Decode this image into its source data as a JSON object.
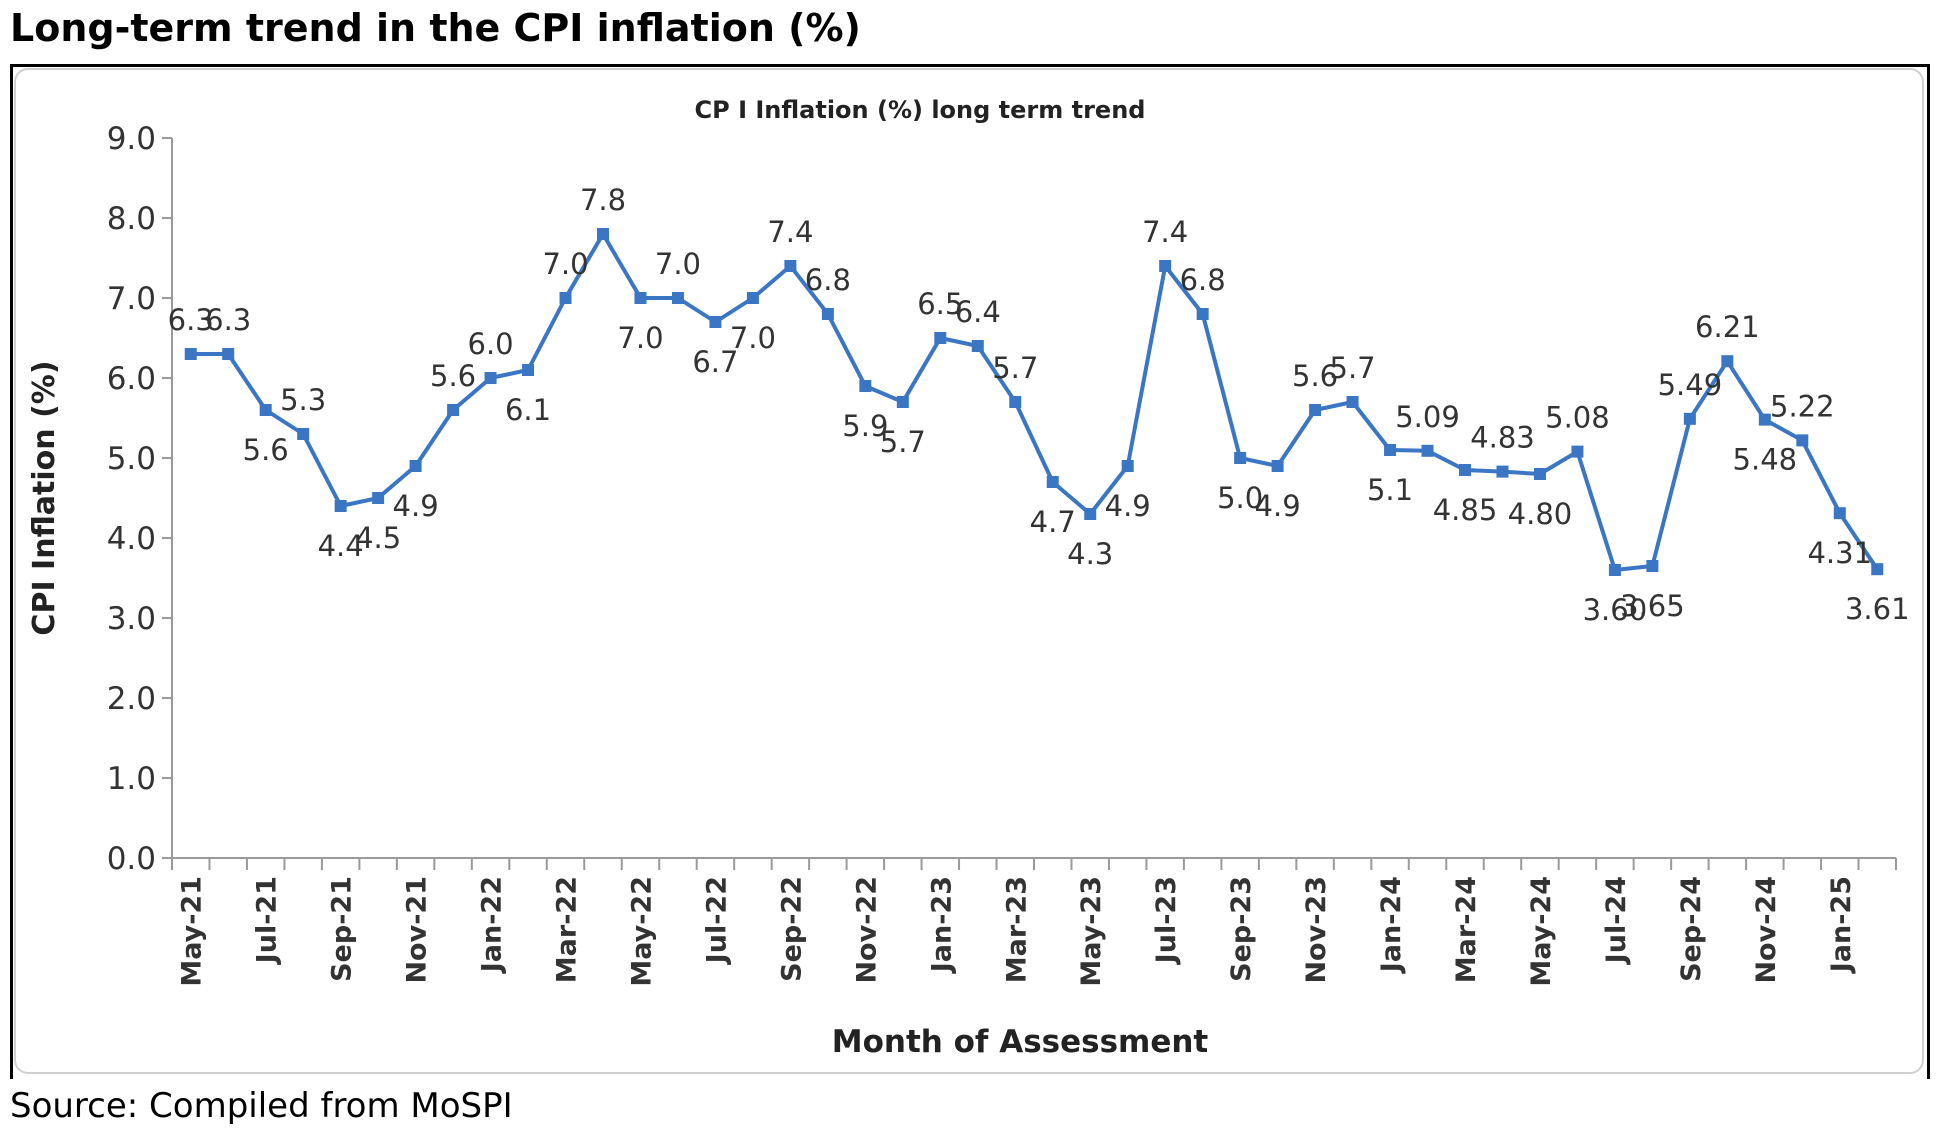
{
  "heading": "Long-term trend in the CPI inflation (%)",
  "source": "Source: Compiled from MoSPI",
  "chart_data": {
    "type": "line",
    "title": "CP I Inflation (%) long term trend",
    "xlabel": "Month of Assessment",
    "ylabel": "CPI Inflation (%)",
    "ylim": [
      0,
      9
    ],
    "yticks": [
      "0.0",
      "1.0",
      "2.0",
      "3.0",
      "4.0",
      "5.0",
      "6.0",
      "7.0",
      "8.0",
      "9.0"
    ],
    "color": "#3a76c4",
    "categories": [
      "May-21",
      "Jun-21",
      "Jul-21",
      "Aug-21",
      "Sep-21",
      "Oct-21",
      "Nov-21",
      "Dec-21",
      "Jan-22",
      "Feb-22",
      "Mar-22",
      "Apr-22",
      "May-22",
      "Jun-22",
      "Jul-22",
      "Aug-22",
      "Sep-22",
      "Oct-22",
      "Nov-22",
      "Dec-22",
      "Jan-23",
      "Feb-23",
      "Mar-23",
      "Apr-23",
      "May-23",
      "Jun-23",
      "Jul-23",
      "Aug-23",
      "Sep-23",
      "Oct-23",
      "Nov-23",
      "Dec-23",
      "Jan-24",
      "Feb-24",
      "Mar-24",
      "Apr-24",
      "May-24",
      "Jun-24",
      "Jul-24",
      "Aug-24",
      "Sep-24",
      "Oct-24",
      "Nov-24",
      "Dec-24",
      "Jan-25",
      "Feb-25"
    ],
    "tick_labels": [
      "May-21",
      "Jul-21",
      "Sep-21",
      "Nov-21",
      "Jan-22",
      "Mar-22",
      "May-22",
      "Jul-22",
      "Sep-22",
      "Nov-22",
      "Jan-23",
      "Mar-23",
      "May-23",
      "Jul-23",
      "Sep-23",
      "Nov-23",
      "Jan-24",
      "Mar-24",
      "May-24",
      "Jul-24",
      "Sep-24",
      "Nov-24",
      "Jan-25"
    ],
    "values": [
      6.3,
      6.3,
      5.6,
      5.3,
      4.4,
      4.5,
      4.9,
      5.6,
      6.0,
      6.1,
      7.0,
      7.8,
      7.0,
      7.0,
      6.7,
      7.0,
      7.4,
      6.8,
      5.9,
      5.7,
      6.5,
      6.4,
      5.7,
      4.7,
      4.3,
      4.9,
      7.4,
      6.8,
      5.0,
      4.9,
      5.6,
      5.7,
      5.1,
      5.09,
      4.85,
      4.83,
      4.8,
      5.08,
      3.6,
      3.65,
      5.49,
      6.21,
      5.48,
      5.22,
      4.31,
      3.61
    ],
    "data_labels": [
      "6.3",
      "6.3",
      "5.6",
      "5.3",
      "4.4",
      "4.5",
      "4.9",
      "5.6",
      "6.0",
      "6.1",
      "7.0",
      "7.8",
      "7.0",
      "7.0",
      "6.7",
      "7.0",
      "7.4",
      "6.8",
      "5.9",
      "5.7",
      "6.5",
      "6.4",
      "5.7",
      "4.7",
      "4.3",
      "4.9",
      "7.4",
      "6.8",
      "5.0",
      "4.9",
      "5.6",
      "5.7",
      "5.1",
      "5.09",
      "4.85",
      "4.83",
      "4.80",
      "5.08",
      "3.60",
      "3.65",
      "5.49",
      "6.21",
      "5.48",
      "5.22",
      "4.31",
      "3.61"
    ]
  }
}
